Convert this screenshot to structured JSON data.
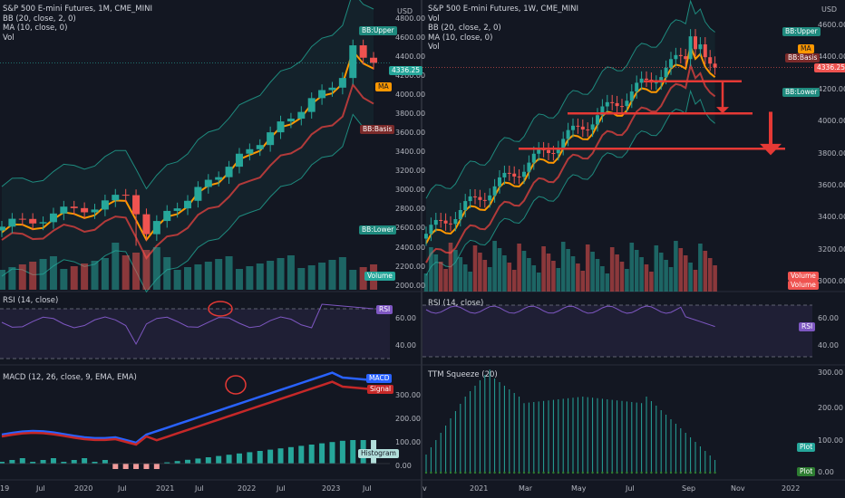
{
  "left_chart": {
    "title": "S&P 500 E-mini Futures, 1M, CME_MINI",
    "bb_legend": "BB (20, close, 2, 0)",
    "ma_legend": "MA (10, close, 0)",
    "vol_legend": "Vol",
    "currency": "USD",
    "price_ticks": [
      "4800.00",
      "4600.00",
      "4400.00",
      "4200.00",
      "4000.00",
      "3800.00",
      "3600.00",
      "3400.00",
      "3200.00",
      "3000.00",
      "2800.00",
      "2600.00",
      "2400.00",
      "2200.00",
      "2000.00"
    ],
    "price_range": [
      1940,
      4900
    ],
    "last_price": "4336.25",
    "labels": {
      "bb_upper": "BB:Upper",
      "ma": "MA",
      "bb_basis": "BB:Basis",
      "bb_lower": "BB:Lower",
      "volume": "Volume"
    },
    "rsi_legend": "RSI (14, close)",
    "rsi_label": "RSI",
    "rsi_ticks": [
      "60.00",
      "40.00"
    ],
    "macd_legend": "MACD (12, 26, close, 9, EMA, EMA)",
    "macd_labels": {
      "macd": "MACD",
      "signal": "Signal",
      "histogram": "Histogram"
    },
    "macd_ticks": [
      "300.00",
      "200.00",
      "100.00",
      "0.00"
    ],
    "x_ticks": [
      "19",
      "Jul",
      "2020",
      "Jul",
      "2021",
      "Jul",
      "2022",
      "Jul",
      "2023",
      "Jul"
    ]
  },
  "right_chart": {
    "title": "S&P 500 E-mini Futures, 1W, CME_MINI",
    "vol_legend": "Vol",
    "bb_legend": "BB (20, close, 2, 0)",
    "ma_legend": "MA (10, close, 0)",
    "vol_legend2": "Vol",
    "currency": "USD",
    "price_ticks": [
      "4600.00",
      "4400.00",
      "4200.00",
      "4000.00",
      "3800.00",
      "3600.00",
      "3400.00",
      "3200.00",
      "3000.00"
    ],
    "price_range": [
      2940,
      4700
    ],
    "last_price": "4336.25",
    "labels": {
      "bb_upper": "BB:Upper",
      "ma": "MA",
      "bb_basis": "BB:Basis",
      "bb_lower": "BB:Lower",
      "volume1": "Volume",
      "volume2": "Volume"
    },
    "rsi_legend": "RSI (14, close)",
    "rsi_label": "RSI",
    "rsi_ticks": [
      "60.00",
      "40.00"
    ],
    "ttm_legend": "TTM Squeeze (20)",
    "ttm_labels": {
      "plot1": "Plot",
      "plot2": "Plot"
    },
    "ttm_ticks": [
      "300.00",
      "200.00",
      "100.00",
      "0.00"
    ],
    "x_ticks": [
      "v",
      "2021",
      "Mar",
      "May",
      "Jul",
      "Sep",
      "Nov",
      "2022"
    ],
    "support_levels": [
      4250,
      4050,
      3830
    ]
  },
  "colors": {
    "bg": "#131722",
    "up": "#26a69a",
    "down": "#ef5350",
    "ma": "#ff9800",
    "bb_basis": "#b23a3a",
    "bb_band": "#1e8a7e",
    "rsi": "#7e57c2",
    "macd": "#2962ff",
    "signal": "#c62828",
    "annotation": "#e53935"
  }
}
